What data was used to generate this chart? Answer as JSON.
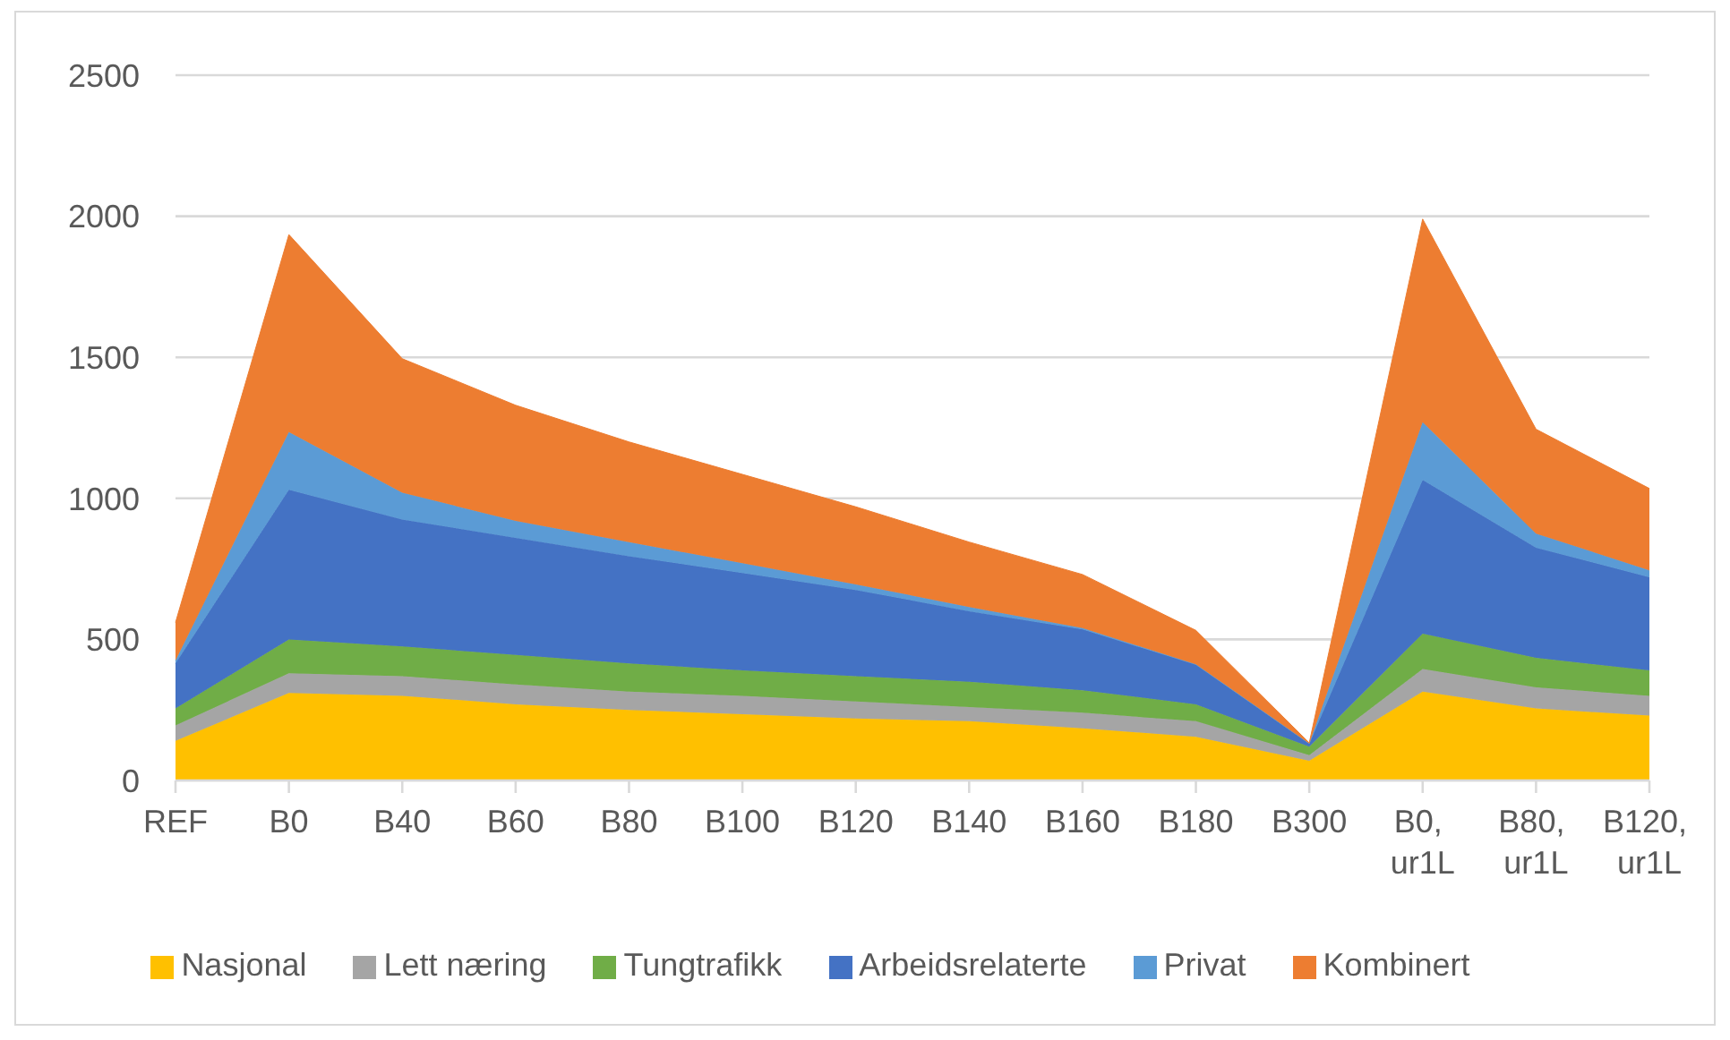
{
  "chart_data": {
    "type": "area",
    "stacked": true,
    "categories": [
      "REF",
      "B0",
      "B40",
      "B60",
      "B80",
      "B100",
      "B120",
      "B140",
      "B160",
      "B180",
      "B300",
      "B0, ur1L",
      "B80, ur1L",
      "B120, ur1L"
    ],
    "series": [
      {
        "name": "Nasjonal",
        "color": "#ffc000",
        "values": [
          140,
          310,
          300,
          270,
          250,
          235,
          220,
          210,
          185,
          155,
          70,
          315,
          255,
          230
        ]
      },
      {
        "name": "Lett næring",
        "color": "#a5a5a5",
        "values": [
          55,
          70,
          70,
          70,
          65,
          65,
          60,
          50,
          55,
          55,
          20,
          80,
          75,
          70
        ]
      },
      {
        "name": "Tungtrafikk",
        "color": "#70ad47",
        "values": [
          60,
          120,
          105,
          105,
          100,
          90,
          90,
          90,
          80,
          60,
          30,
          125,
          105,
          90
        ]
      },
      {
        "name": "Arbeidsrelaterte",
        "color": "#4472c4",
        "values": [
          160,
          530,
          450,
          415,
          380,
          345,
          305,
          250,
          215,
          140,
          10,
          545,
          390,
          330
        ]
      },
      {
        "name": "Privat",
        "color": "#5b9bd5",
        "values": [
          10,
          205,
          95,
          60,
          50,
          35,
          20,
          15,
          5,
          2,
          1,
          205,
          50,
          25
        ]
      },
      {
        "name": "Kombinert",
        "color": "#ed7d31",
        "values": [
          135,
          700,
          475,
          410,
          355,
          315,
          275,
          230,
          190,
          120,
          2,
          720,
          370,
          290
        ]
      }
    ],
    "ylim": [
      0,
      2500
    ],
    "yticks": [
      0,
      500,
      1000,
      1500,
      2000,
      2500
    ],
    "grid": "y",
    "legend": "bottom"
  }
}
